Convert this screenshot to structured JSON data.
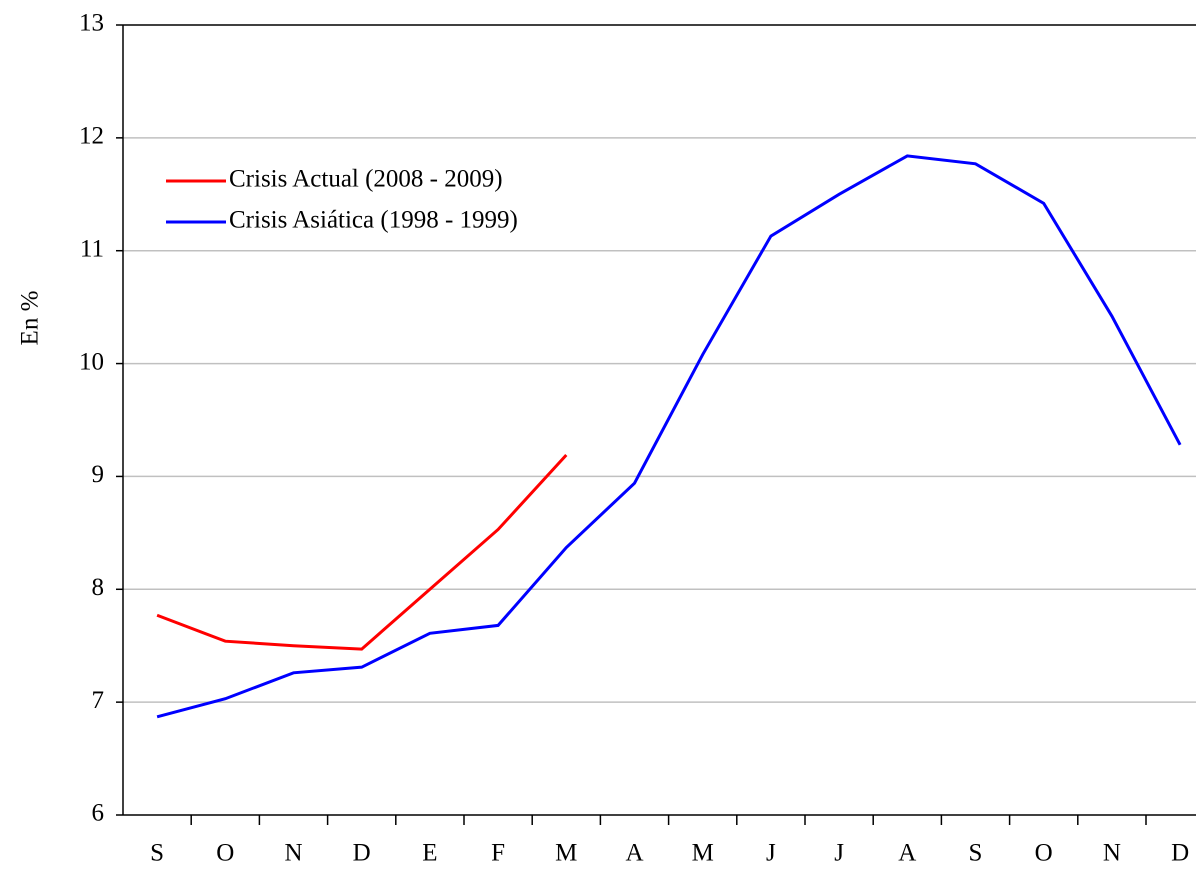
{
  "chart_data": {
    "type": "line",
    "y_label": "En %",
    "categories": [
      "S",
      "O",
      "N",
      "D",
      "E",
      "F",
      "M",
      "A",
      "M",
      "J",
      "J",
      "A",
      "S",
      "O",
      "N",
      "D"
    ],
    "series": [
      {
        "name": "Crisis Actual (2008 - 2009)",
        "color": "#ff0000",
        "values": [
          7.77,
          7.54,
          7.5,
          7.47,
          8.0,
          8.53,
          9.19,
          null,
          null,
          null,
          null,
          null,
          null,
          null,
          null,
          null
        ]
      },
      {
        "name": "Crisis Asiática (1998 - 1999)",
        "color": "#0000ff",
        "values": [
          6.87,
          7.03,
          7.26,
          7.31,
          7.61,
          7.68,
          8.37,
          8.94,
          10.08,
          11.13,
          11.5,
          11.84,
          11.77,
          11.42,
          10.42,
          9.28
        ]
      }
    ],
    "ylim": [
      6,
      13
    ],
    "yticks": [
      6,
      7,
      8,
      9,
      10,
      11,
      12,
      13
    ],
    "grid": true
  }
}
